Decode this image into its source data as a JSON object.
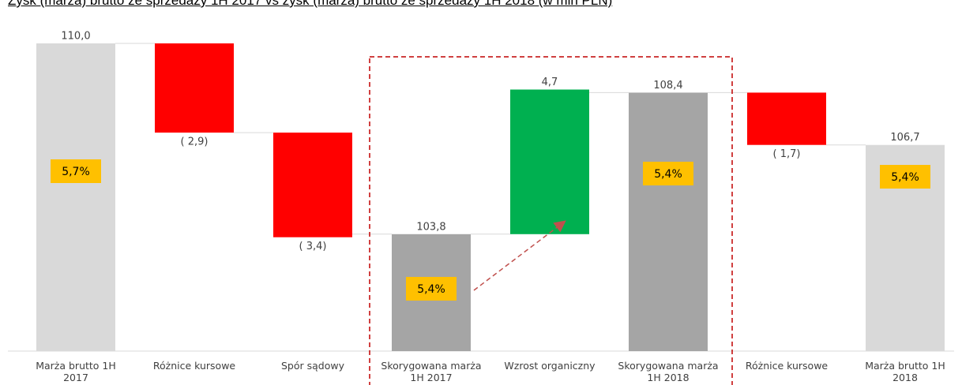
{
  "chart_data": {
    "type": "waterfall",
    "title": "Zysk (marża) brutto ze sprzedaży 1H 2017 vs zysk (marża) brutto ze sprzedaży 1H 2018 (w mln PLN)",
    "categories": [
      "Marża brutto 1H 2017",
      "Różnice kursowe",
      "Spór sądowy",
      "Skorygowana marża 1H 2017",
      "Wzrost organiczny",
      "Skorygowana marża 1H 2018",
      "Różnice kursowe",
      "Marża brutto 1H 2018"
    ],
    "kinds": [
      "total",
      "delta",
      "delta",
      "total",
      "delta",
      "total",
      "delta",
      "total"
    ],
    "values": [
      110.0,
      -2.9,
      -3.4,
      103.8,
      4.7,
      108.4,
      -1.7,
      106.7
    ],
    "value_labels": [
      "110,0",
      "( 2,9)",
      "( 3,4)",
      "103,8",
      "4,7",
      "108,4",
      "( 1,7)",
      "106,7"
    ],
    "colors": [
      "#d9d9d9",
      "#ff0000",
      "#ff0000",
      "#a5a5a5",
      "#00b050",
      "#a5a5a5",
      "#ff0000",
      "#d9d9d9"
    ],
    "margins": [
      5.7,
      null,
      null,
      5.4,
      null,
      5.4,
      null,
      5.4
    ],
    "margin_labels": [
      "5,7%",
      null,
      null,
      "5,4%",
      null,
      "5,4%",
      null,
      "5,4%"
    ],
    "margin_color": "#ffc000",
    "ylim": [
      100,
      111
    ]
  }
}
